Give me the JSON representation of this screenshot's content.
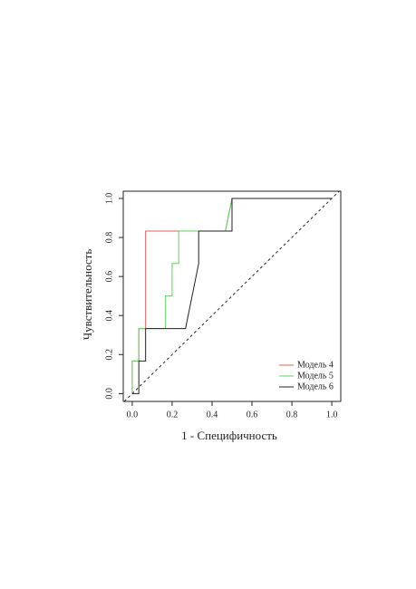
{
  "chart_data": {
    "type": "line",
    "xlabel": "1 - Специфичность",
    "ylabel": "Чувствительность",
    "xlim": [
      -0.045,
      1.045
    ],
    "ylim": [
      -0.04,
      1.037
    ],
    "xticks": [
      {
        "value": 0,
        "label": "0.0"
      },
      {
        "value": 0.2,
        "label": "0.2"
      },
      {
        "value": 0.4,
        "label": "0.4"
      },
      {
        "value": 0.6,
        "label": "0.6"
      },
      {
        "value": 0.8,
        "label": "0.8"
      },
      {
        "value": 1,
        "label": "1.0"
      }
    ],
    "yticks": [
      {
        "value": 0,
        "label": "0.0"
      },
      {
        "value": 0.2,
        "label": "0.2"
      },
      {
        "value": 0.4,
        "label": "0.4"
      },
      {
        "value": 0.6,
        "label": "0.6"
      },
      {
        "value": 0.8,
        "label": "0.8"
      },
      {
        "value": 1,
        "label": "1.0"
      }
    ],
    "legend": "bottom-right",
    "series": [
      {
        "name": "Модель 4",
        "color": "#e06060",
        "x": [
          0,
          0,
          0.033,
          0.033,
          0.067,
          0.067,
          0.467,
          0.5,
          1
        ],
        "values": [
          0,
          0.167,
          0.167,
          0.333,
          0.333,
          0.833,
          0.833,
          1,
          1
        ]
      },
      {
        "name": "Модель 5",
        "color": "#60d060",
        "x": [
          0,
          0,
          0.033,
          0.033,
          0.167,
          0.167,
          0.2,
          0.2,
          0.233,
          0.233,
          0.467,
          0.5,
          1
        ],
        "values": [
          0,
          0.167,
          0.167,
          0.333,
          0.333,
          0.5,
          0.5,
          0.667,
          0.667,
          0.833,
          0.833,
          1,
          1
        ]
      },
      {
        "name": "Модель 6",
        "color": "#222222",
        "x": [
          0,
          0.033,
          0.033,
          0.067,
          0.067,
          0.267,
          0.333,
          0.333,
          0.5,
          0.5,
          1
        ],
        "values": [
          0,
          0,
          0.167,
          0.167,
          0.333,
          0.333,
          0.667,
          0.833,
          0.833,
          1,
          1
        ]
      }
    ]
  }
}
